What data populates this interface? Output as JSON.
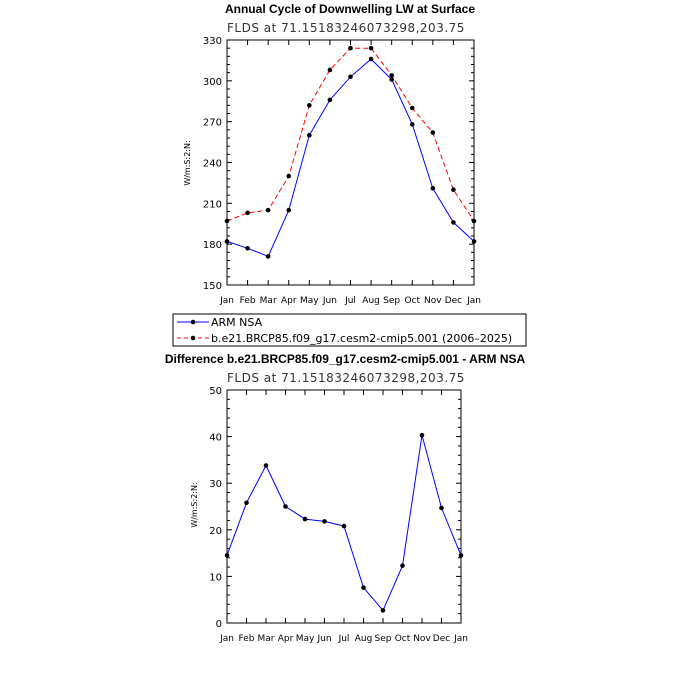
{
  "chart_data": [
    {
      "type": "line",
      "title": "Annual Cycle of Downwelling LW at Surface",
      "subtitle": "FLDS at 71.15183246073298,203.75",
      "ylabel": "W/m:S:2:N:",
      "xlabel": "",
      "categories": [
        "Jan",
        "Feb",
        "Mar",
        "Apr",
        "May",
        "Jun",
        "Jul",
        "Aug",
        "Sep",
        "Oct",
        "Nov",
        "Dec",
        "Jan"
      ],
      "ylim": [
        150,
        330
      ],
      "yticks": [
        150,
        180,
        210,
        240,
        270,
        300,
        330
      ],
      "series": [
        {
          "name": "ARM NSA",
          "color": "#0000ff",
          "dash": "solid",
          "values": [
            182,
            177,
            171,
            205,
            260,
            286,
            303,
            316,
            301,
            268,
            221,
            196,
            182
          ]
        },
        {
          "name": "b.e21.BRCP85.f09_g17.cesm2-cmip5.001 (2006–2025)",
          "color": "#ff0000",
          "dash": "dashed",
          "values": [
            197,
            203,
            205,
            230,
            282,
            308,
            324,
            324,
            304,
            280,
            262,
            220,
            197
          ]
        }
      ],
      "legend": "below"
    },
    {
      "type": "line",
      "title": "Difference b.e21.BRCP85.f09_g17.cesm2-cmip5.001 - ARM NSA",
      "subtitle": "FLDS at 71.15183246073298,203.75",
      "ylabel": "W/m:S:2:N:",
      "xlabel": "",
      "categories": [
        "Jan",
        "Feb",
        "Mar",
        "Apr",
        "May",
        "Jun",
        "Jul",
        "Aug",
        "Sep",
        "Oct",
        "Nov",
        "Dec",
        "Jan"
      ],
      "ylim": [
        0,
        50
      ],
      "yticks": [
        0,
        10,
        20,
        30,
        40,
        50
      ],
      "series": [
        {
          "name": "",
          "color": "#0000ff",
          "dash": "solid",
          "values": [
            14.5,
            25.8,
            33.8,
            25,
            22.3,
            21.8,
            20.8,
            7.6,
            2.7,
            12.3,
            40.3,
            24.7,
            14.5
          ]
        }
      ]
    }
  ]
}
